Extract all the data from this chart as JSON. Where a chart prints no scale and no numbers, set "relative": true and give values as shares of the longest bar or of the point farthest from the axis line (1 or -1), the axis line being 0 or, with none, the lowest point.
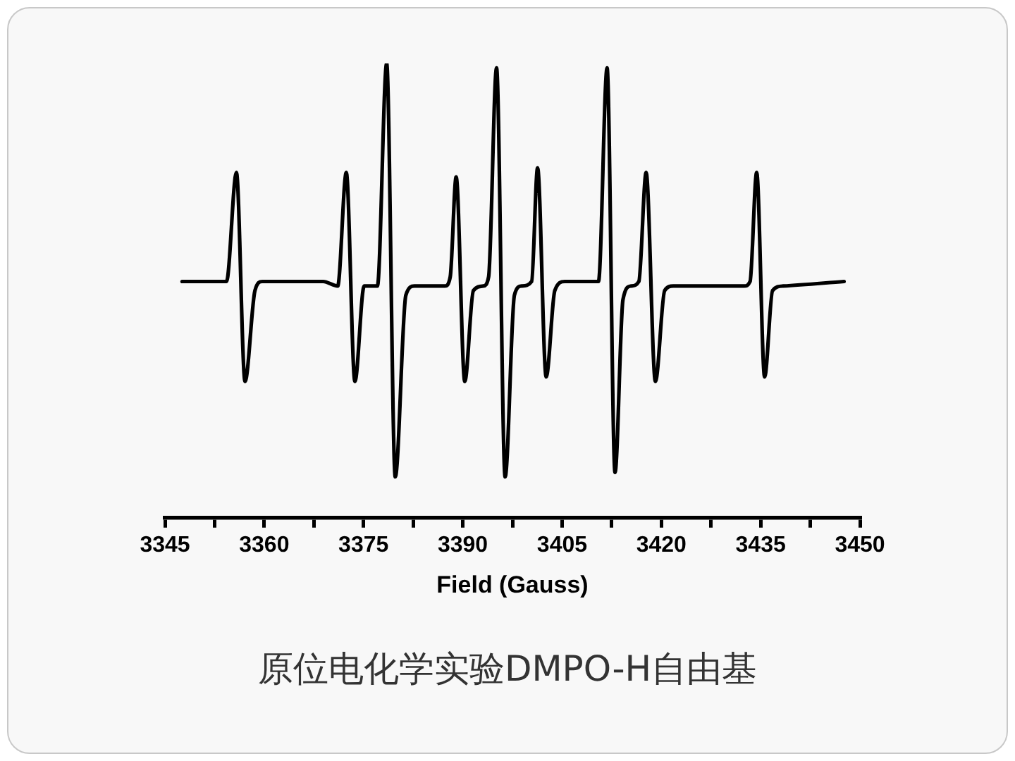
{
  "chart_data": {
    "type": "line",
    "title": "原位电化学实验DMPO-H自由基",
    "xlabel": "Field (Gauss)",
    "relative": true,
    "grid": false,
    "legend": false,
    "marker": "none",
    "line_style": "solid",
    "xlim": [
      3345,
      3450
    ],
    "xticks": [
      3345,
      {
        "value": 3352.5,
        "label": null
      },
      3360,
      {
        "value": 3367.5,
        "label": null
      },
      3375,
      {
        "value": 3382.5,
        "label": null
      },
      3390,
      {
        "value": 3397.5,
        "label": null
      },
      3405,
      {
        "value": 3412.5,
        "label": null
      },
      3420,
      {
        "value": 3427.5,
        "label": null
      },
      3435,
      {
        "value": 3442.5,
        "label": null
      },
      3450
    ],
    "series": [
      {
        "color": "#000000",
        "x": [
          3347.6,
          3352.5,
          3354.3,
          3355.8,
          3357.1,
          3358.6,
          3359.7,
          3368.9,
          3371.1,
          3372.4,
          3373.7,
          3375.1,
          3377.1,
          3378.5,
          3379.8,
          3381.4,
          3382.7,
          3387.3,
          3388.1,
          3389.0,
          3390.3,
          3391.6,
          3393.1,
          3393.9,
          3395.1,
          3396.4,
          3397.8,
          3398.9,
          3400.4,
          3401.3,
          3402.6,
          3403.9,
          3405.4,
          3409.7,
          3410.5,
          3411.8,
          3413.0,
          3414.2,
          3415.4,
          3416.6,
          3417.7,
          3419.1,
          3420.5,
          3421.8,
          3432.5,
          3433.4,
          3434.4,
          3435.6,
          3436.8,
          3438.4,
          3447.6
        ],
        "values": [
          0.52,
          0.52,
          0.52,
          0.76,
          0.3,
          0.5,
          0.52,
          0.52,
          0.51,
          0.76,
          0.3,
          0.51,
          0.51,
          1,
          0.09,
          0.49,
          0.51,
          0.51,
          0.53,
          0.75,
          0.3,
          0.5,
          0.51,
          0.53,
          0.99,
          0.09,
          0.49,
          0.51,
          0.52,
          0.77,
          0.31,
          0.5,
          0.52,
          0.52,
          0.52,
          0.99,
          0.1,
          0.48,
          0.51,
          0.52,
          0.76,
          0.3,
          0.5,
          0.51,
          0.51,
          0.52,
          0.76,
          0.31,
          0.5,
          0.51,
          0.52
        ]
      }
    ]
  }
}
